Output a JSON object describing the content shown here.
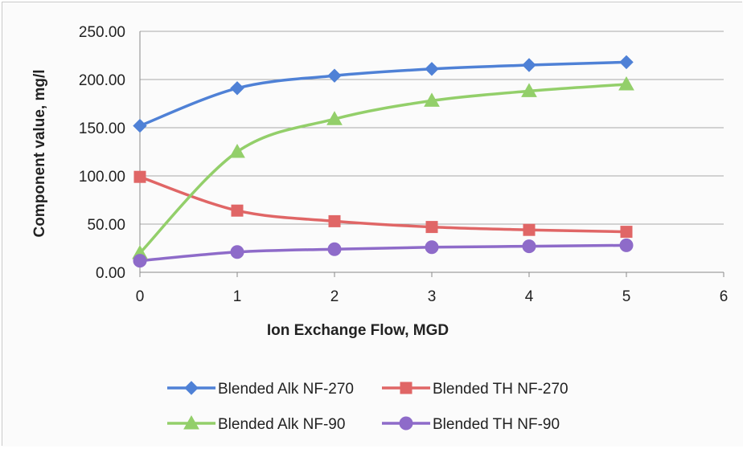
{
  "chart_data": {
    "type": "line",
    "title": "",
    "xlabel": "Ion Exchange Flow, MGD",
    "ylabel": "Component value, mg/l",
    "xlim": [
      0,
      6
    ],
    "ylim": [
      0,
      250
    ],
    "x_ticks": [
      "0",
      "1",
      "2",
      "3",
      "4",
      "5",
      "6"
    ],
    "y_ticks": [
      "0.00",
      "50.00",
      "100.00",
      "150.00",
      "200.00",
      "250.00"
    ],
    "grid": "horizontal",
    "legend_position": "bottom",
    "smooth": true,
    "x": [
      0,
      1,
      2,
      3,
      4,
      5
    ],
    "series": [
      {
        "name": "Blended Alk NF-270",
        "color": "#4f81d6",
        "marker": "diamond",
        "values": [
          152,
          191,
          204,
          211,
          215,
          218
        ]
      },
      {
        "name": "Blended TH NF-270",
        "color": "#e06666",
        "marker": "square",
        "values": [
          99,
          64,
          53,
          47,
          44,
          42
        ]
      },
      {
        "name": "Blended Alk NF-90",
        "color": "#93cf6a",
        "marker": "triangle",
        "values": [
          20,
          125,
          159,
          178,
          188,
          195
        ]
      },
      {
        "name": "Blended TH NF-90",
        "color": "#8e6bc9",
        "marker": "circle",
        "values": [
          12,
          21,
          24,
          26,
          27,
          28
        ]
      }
    ]
  }
}
